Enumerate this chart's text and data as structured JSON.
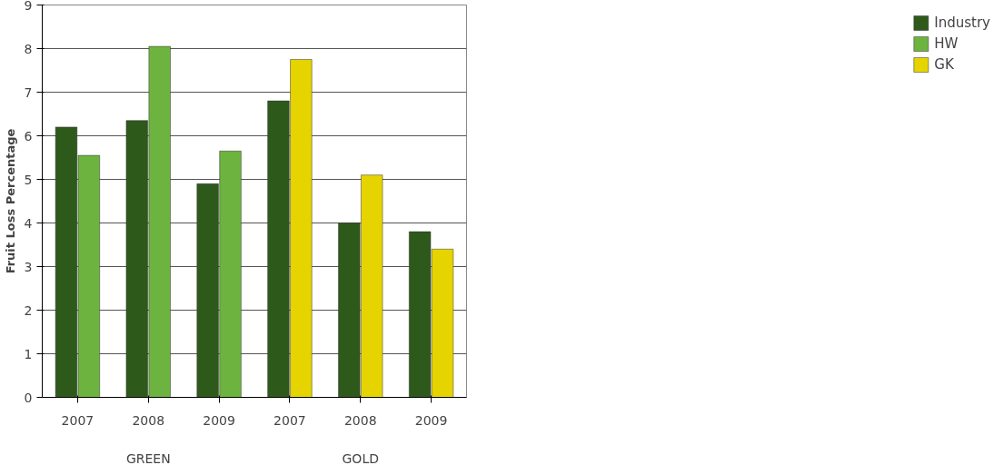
{
  "chart_data": {
    "type": "bar",
    "ylabel": "Fruit Loss Percentage",
    "categories": [
      "2007",
      "2008",
      "2009",
      "2007",
      "2008",
      "2009"
    ],
    "series": [
      {
        "name": "Industry",
        "color": "#2d5a1b",
        "values": [
          6.2,
          6.35,
          4.9,
          6.8,
          4.0,
          3.8
        ]
      },
      {
        "name": "HW",
        "color": "#6db33f",
        "values": [
          5.55,
          8.05,
          5.65,
          null,
          null,
          null
        ]
      },
      {
        "name": "GK",
        "color": "#e6d400",
        "values": [
          null,
          null,
          null,
          7.75,
          5.1,
          3.4
        ]
      }
    ],
    "ylim": [
      0,
      9
    ],
    "yticks": [
      0,
      1,
      2,
      3,
      4,
      5,
      6,
      7,
      8,
      9
    ],
    "grid": "y",
    "legend": "right",
    "annotations": [
      "GREEN",
      "GOLD"
    ]
  }
}
